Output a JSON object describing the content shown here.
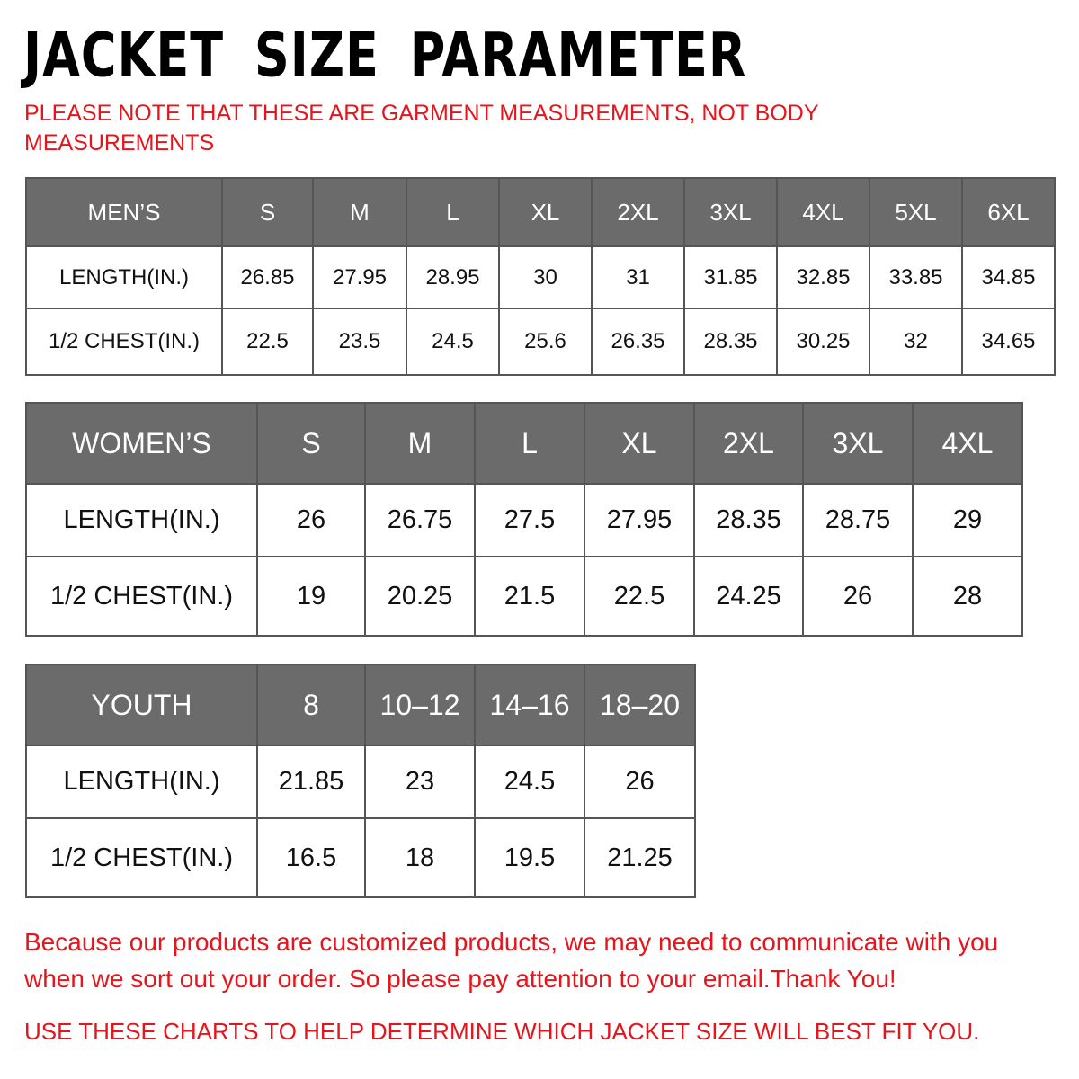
{
  "title": "JACKET SIZE PARAMETER",
  "note": "PLEASE NOTE THAT THESE ARE GARMENT MEASUREMENTS, NOT BODY MEASUREMENTS",
  "header_color": "#6b6b6b",
  "accent_color": "#e8141b",
  "mens": {
    "header": [
      "MEN’S",
      "S",
      "M",
      "L",
      "XL",
      "2XL",
      "3XL",
      "4XL",
      "5XL",
      "6XL"
    ],
    "rows": [
      [
        "LENGTH(IN.)",
        "26.85",
        "27.95",
        "28.95",
        "30",
        "31",
        "31.85",
        "32.85",
        "33.85",
        "34.85"
      ],
      [
        "1/2 CHEST(IN.)",
        "22.5",
        "23.5",
        "24.5",
        "25.6",
        "26.35",
        "28.35",
        "30.25",
        "32",
        "34.65"
      ]
    ]
  },
  "womens": {
    "header": [
      "WOMEN’S",
      "S",
      "M",
      "L",
      "XL",
      "2XL",
      "3XL",
      "4XL"
    ],
    "rows": [
      [
        "LENGTH(IN.)",
        "26",
        "26.75",
        "27.5",
        "27.95",
        "28.35",
        "28.75",
        "29"
      ],
      [
        "1/2 CHEST(IN.)",
        "19",
        "20.25",
        "21.5",
        "22.5",
        "24.25",
        "26",
        "28"
      ]
    ]
  },
  "youth": {
    "header": [
      "YOUTH",
      "8",
      "10–12",
      "14–16",
      "18–20"
    ],
    "rows": [
      [
        "LENGTH(IN.)",
        "21.85",
        "23",
        "24.5",
        "26"
      ],
      [
        "1/2 CHEST(IN.)",
        "16.5",
        "18",
        "19.5",
        "21.25"
      ]
    ]
  },
  "footer": {
    "line1": "Because our products are customized products, we may need to communicate with you when we sort out your order. So please pay attention to your email.Thank You!",
    "line2": "USE THESE CHARTS TO HELP DETERMINE WHICH JACKET SIZE WILL BEST FIT YOU."
  }
}
